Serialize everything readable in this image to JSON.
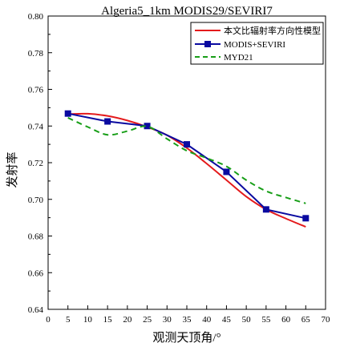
{
  "chart_data": {
    "type": "line",
    "title": "Algeria5_1km MODIS29/SEVIRI7",
    "xlabel": "观测天顶角/°",
    "ylabel": "发射率",
    "xlim": [
      0,
      70
    ],
    "ylim": [
      0.64,
      0.8
    ],
    "xticks": [
      0,
      5,
      10,
      15,
      20,
      25,
      30,
      35,
      40,
      45,
      50,
      55,
      60,
      65,
      70
    ],
    "yticks": [
      "0.64",
      "0.66",
      "0.68",
      "0.70",
      "0.72",
      "0.74",
      "0.76",
      "0.78",
      "0.80"
    ],
    "grid": false,
    "legend_position": "top-right",
    "series": [
      {
        "name": "本文比辐射率方向性模型",
        "style": "solid",
        "color": "#e41a1c",
        "x": [
          5,
          10,
          15,
          20,
          25,
          30,
          35,
          40,
          45,
          50,
          55,
          60,
          65
        ],
        "y": [
          0.7465,
          0.7467,
          0.7455,
          0.743,
          0.7395,
          0.735,
          0.728,
          0.7195,
          0.7105,
          0.7015,
          0.6945,
          0.6895,
          0.685
        ]
      },
      {
        "name": "MODIS+SEVIRI",
        "style": "solid-square",
        "color": "#0a0aa0",
        "x": [
          5,
          15,
          25,
          35,
          45,
          55,
          65
        ],
        "y": [
          0.7468,
          0.7425,
          0.74,
          0.73,
          0.715,
          0.6945,
          0.6897
        ]
      },
      {
        "name": "MYD21",
        "style": "dashed",
        "color": "#179e17",
        "x": [
          5,
          10,
          15,
          20,
          25,
          30,
          35,
          40,
          45,
          50,
          55,
          60,
          65
        ],
        "y": [
          0.7445,
          0.7395,
          0.7352,
          0.7372,
          0.7398,
          0.733,
          0.7265,
          0.7225,
          0.718,
          0.7105,
          0.7045,
          0.701,
          0.6978
        ]
      }
    ]
  }
}
